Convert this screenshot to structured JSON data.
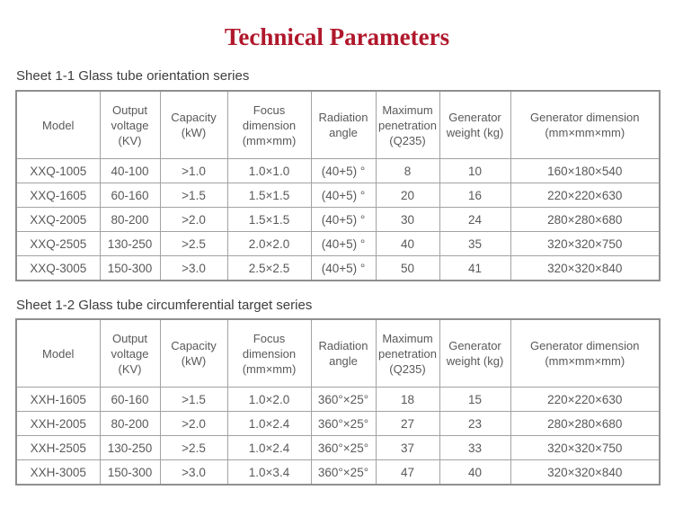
{
  "page": {
    "title": "Technical Parameters"
  },
  "colors": {
    "title_red": "#b0182c",
    "table_text_gray": "#595959",
    "border_gray": "#a2a2a2",
    "heading_gray": "#3e3e3e"
  },
  "sections": [
    {
      "heading": "Sheet 1-1 Glass tube orientation series",
      "table": {
        "headers": [
          "Model",
          "Output voltage (KV)",
          "Capacity (kW)",
          "Focus dimension (mm×mm)",
          "Radiation angle",
          "Maximum penetration (Q235)",
          "Generator weight (kg)",
          "Generator dimension (mm×mm×mm)"
        ],
        "rows": [
          [
            "XXQ-1005",
            "40-100",
            ">1.0",
            "1.0×1.0",
            "(40+5) °",
            "8",
            "10",
            "160×180×540"
          ],
          [
            "XXQ-1605",
            "60-160",
            ">1.5",
            "1.5×1.5",
            "(40+5) °",
            "20",
            "16",
            "220×220×630"
          ],
          [
            "XXQ-2005",
            "80-200",
            ">2.0",
            "1.5×1.5",
            "(40+5) °",
            "30",
            "24",
            "280×280×680"
          ],
          [
            "XXQ-2505",
            "130-250",
            ">2.5",
            "2.0×2.0",
            "(40+5) °",
            "40",
            "35",
            "320×320×750"
          ],
          [
            "XXQ-3005",
            "150-300",
            ">3.0",
            "2.5×2.5",
            "(40+5) °",
            "50",
            "41",
            "320×320×840"
          ]
        ]
      }
    },
    {
      "heading": "Sheet 1-2 Glass tube circumferential target series",
      "table": {
        "headers": [
          "Model",
          "Output voltage (KV)",
          "Capacity (kW)",
          "Focus dimension (mm×mm)",
          "Radiation angle",
          "Maximum penetration (Q235)",
          "Generator weight (kg)",
          "Generator dimension (mm×mm×mm)"
        ],
        "rows": [
          [
            "XXH-1605",
            "60-160",
            ">1.5",
            "1.0×2.0",
            "360°×25°",
            "18",
            "15",
            "220×220×630"
          ],
          [
            "XXH-2005",
            "80-200",
            ">2.0",
            "1.0×2.4",
            "360°×25°",
            "27",
            "23",
            "280×280×680"
          ],
          [
            "XXH-2505",
            "130-250",
            ">2.5",
            "1.0×2.4",
            "360°×25°",
            "37",
            "33",
            "320×320×750"
          ],
          [
            "XXH-3005",
            "150-300",
            ">3.0",
            "1.0×3.4",
            "360°×25°",
            "47",
            "40",
            "320×320×840"
          ]
        ]
      }
    }
  ]
}
